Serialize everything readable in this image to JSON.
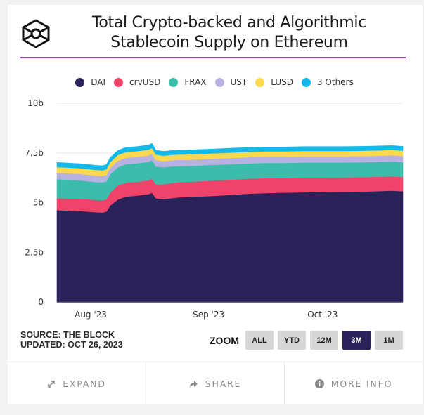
{
  "header": {
    "title_line1": "Total Crypto-backed and Algorithmic",
    "title_line2": "Stablecoin Supply on Ethereum",
    "logo": "the-block-cube-logo"
  },
  "colors": {
    "accent_rule": "#a43ad6",
    "zoom_active": "#2a2359"
  },
  "chart_data": {
    "type": "area",
    "stacked": true,
    "title": "Total Crypto-backed and Algorithmic Stablecoin Supply on Ethereum",
    "xlabel": "",
    "ylabel": "",
    "ylim": [
      0,
      10
    ],
    "y_unit": "b",
    "y_ticks": [
      {
        "value": 0,
        "label": "0"
      },
      {
        "value": 2.5,
        "label": "2.5b"
      },
      {
        "value": 5,
        "label": "5b"
      },
      {
        "value": 7.5,
        "label": "7.5b"
      },
      {
        "value": 10,
        "label": "10b"
      }
    ],
    "x_ticks": [
      {
        "day": 5,
        "label": "Aug '23"
      },
      {
        "day": 36,
        "label": "Sep '23"
      },
      {
        "day": 66,
        "label": "Oct '23"
      }
    ],
    "x_range_days": [
      0,
      91
    ],
    "grid": true,
    "legend_position": "top-center",
    "x": [
      0,
      6,
      10,
      12,
      13,
      14,
      16,
      18,
      21,
      24,
      25,
      26,
      28,
      30,
      32,
      34,
      36,
      40,
      45,
      50,
      55,
      60,
      65,
      70,
      75,
      80,
      85,
      88,
      91
    ],
    "series": [
      {
        "name": "DAI",
        "color": "#2a2359",
        "values": [
          4.62,
          4.58,
          4.52,
          4.5,
          4.55,
          4.85,
          5.15,
          5.3,
          5.35,
          5.42,
          5.5,
          5.22,
          5.18,
          5.22,
          5.26,
          5.28,
          5.3,
          5.33,
          5.38,
          5.44,
          5.48,
          5.5,
          5.52,
          5.53,
          5.54,
          5.55,
          5.58,
          5.6,
          5.57
        ]
      },
      {
        "name": "crvUSD",
        "color": "#f0436a",
        "values": [
          0.6,
          0.62,
          0.62,
          0.62,
          0.62,
          0.66,
          0.7,
          0.7,
          0.7,
          0.7,
          0.7,
          0.7,
          0.74,
          0.76,
          0.76,
          0.76,
          0.76,
          0.77,
          0.77,
          0.76,
          0.75,
          0.74,
          0.74,
          0.73,
          0.73,
          0.73,
          0.72,
          0.72,
          0.72
        ]
      },
      {
        "name": "FRAX",
        "color": "#3cbdac",
        "values": [
          0.96,
          0.92,
          0.9,
          0.9,
          0.9,
          0.92,
          0.93,
          0.93,
          0.93,
          0.93,
          0.94,
          0.9,
          0.86,
          0.84,
          0.82,
          0.8,
          0.8,
          0.79,
          0.78,
          0.77,
          0.77,
          0.76,
          0.76,
          0.76,
          0.75,
          0.75,
          0.75,
          0.75,
          0.74
        ]
      },
      {
        "name": "UST",
        "color": "#b7b2e2",
        "values": [
          0.32,
          0.32,
          0.32,
          0.32,
          0.32,
          0.32,
          0.32,
          0.32,
          0.32,
          0.32,
          0.32,
          0.32,
          0.31,
          0.31,
          0.31,
          0.31,
          0.31,
          0.31,
          0.31,
          0.31,
          0.31,
          0.31,
          0.31,
          0.31,
          0.31,
          0.31,
          0.31,
          0.31,
          0.31
        ]
      },
      {
        "name": "LUSD",
        "color": "#fbd84d",
        "values": [
          0.29,
          0.29,
          0.29,
          0.29,
          0.29,
          0.29,
          0.29,
          0.29,
          0.29,
          0.29,
          0.29,
          0.28,
          0.27,
          0.27,
          0.27,
          0.27,
          0.27,
          0.27,
          0.27,
          0.27,
          0.27,
          0.27,
          0.27,
          0.27,
          0.27,
          0.27,
          0.27,
          0.27,
          0.27
        ]
      },
      {
        "name": "3 Others",
        "color": "#13b9ea",
        "values": [
          0.23,
          0.23,
          0.23,
          0.23,
          0.23,
          0.23,
          0.23,
          0.23,
          0.23,
          0.23,
          0.23,
          0.22,
          0.22,
          0.22,
          0.22,
          0.22,
          0.22,
          0.22,
          0.22,
          0.22,
          0.22,
          0.22,
          0.22,
          0.22,
          0.22,
          0.22,
          0.22,
          0.22,
          0.22
        ]
      }
    ]
  },
  "footer": {
    "source": "SOURCE: THE BLOCK",
    "updated": "UPDATED: OCT 26, 2023",
    "zoom_label": "ZOOM",
    "zoom_options": [
      {
        "label": "ALL",
        "active": false
      },
      {
        "label": "YTD",
        "active": false
      },
      {
        "label": "12M",
        "active": false
      },
      {
        "label": "3M",
        "active": true
      },
      {
        "label": "1M",
        "active": false
      }
    ]
  },
  "actions": [
    {
      "label": "EXPAND",
      "icon": "expand-arrows-icon"
    },
    {
      "label": "SHARE",
      "icon": "share-arrow-icon"
    },
    {
      "label": "MORE INFO",
      "icon": "info-circle-icon"
    }
  ]
}
